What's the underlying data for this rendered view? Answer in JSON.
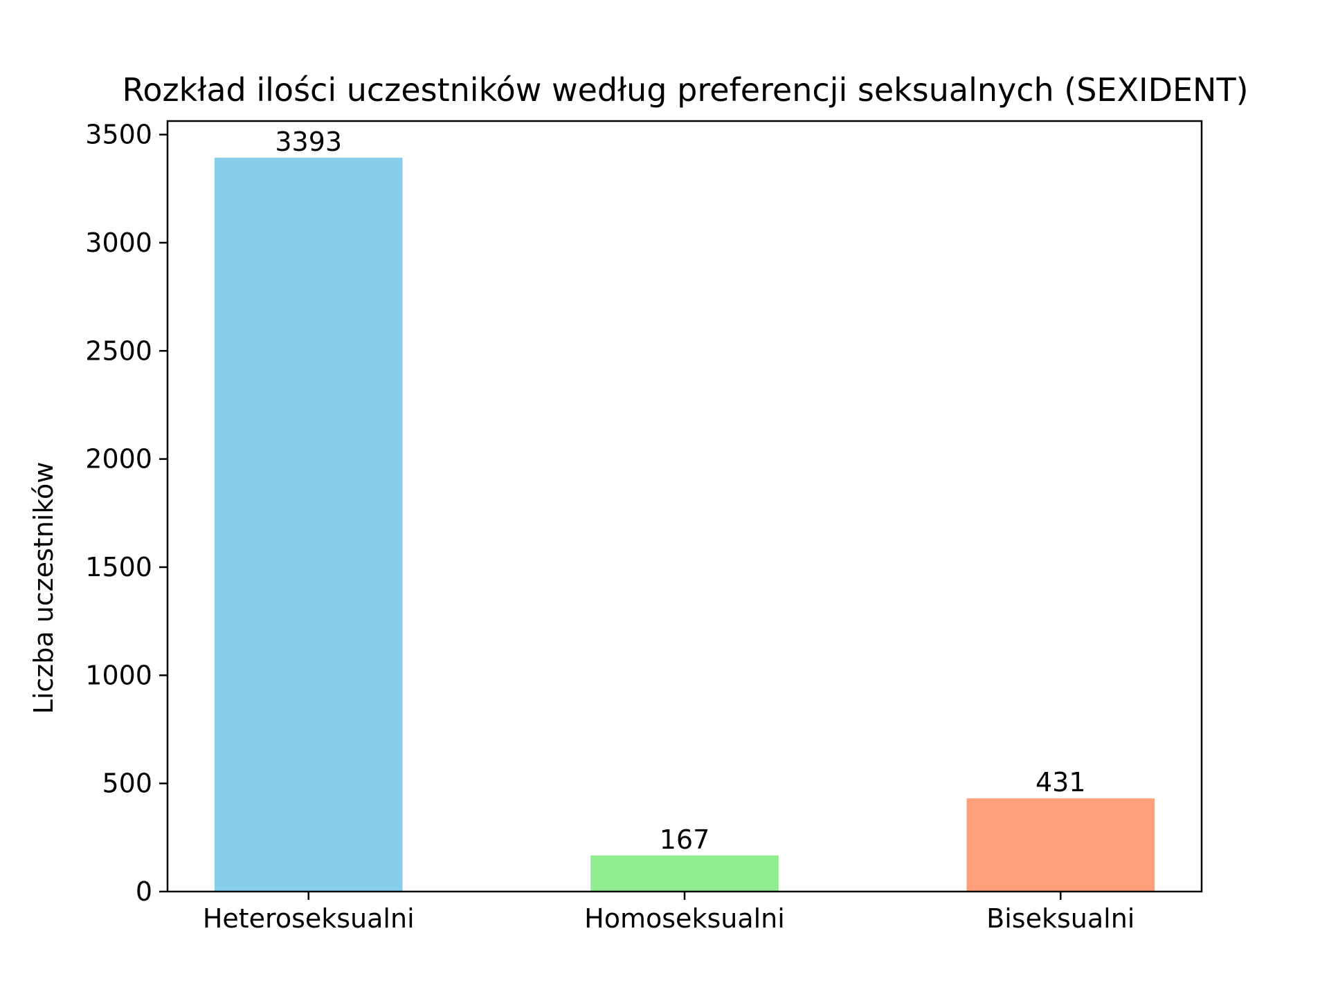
{
  "chart_data": {
    "type": "bar",
    "title": "Rozkład ilości uczestników według preferencji seksualnych (SEXIDENT)",
    "xlabel": "",
    "ylabel": "Liczba uczestników",
    "categories": [
      "Heteroseksualni",
      "Homoseksualni",
      "Biseksualni"
    ],
    "values": [
      3393,
      167,
      431
    ],
    "data_labels": [
      "3393",
      "167",
      "431"
    ],
    "colors": [
      "#87ceeb",
      "#90ee90",
      "#ffa07a"
    ],
    "ylim": [
      0,
      3562.65
    ],
    "yticks": [
      0,
      500,
      1000,
      1500,
      2000,
      2500,
      3000,
      3500
    ],
    "ytick_labels": [
      "0",
      "500",
      "1000",
      "1500",
      "2000",
      "2500",
      "3000",
      "3500"
    ],
    "grid": false,
    "legend": "none"
  }
}
